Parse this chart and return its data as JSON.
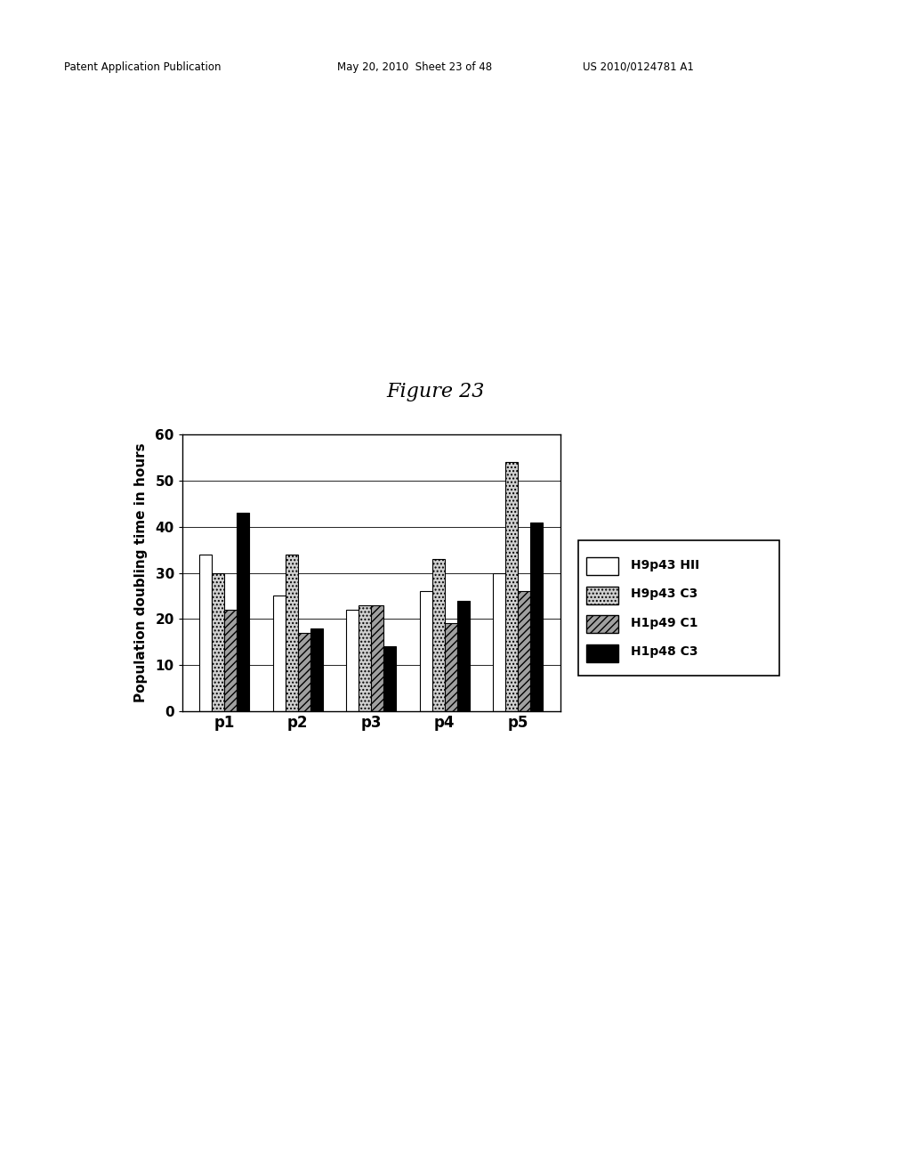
{
  "categories": [
    "p1",
    "p2",
    "p3",
    "p4",
    "p5"
  ],
  "series": [
    {
      "label": "H9p43 HII",
      "values": [
        34,
        25,
        22,
        26,
        30
      ],
      "color": "#ffffff",
      "edgecolor": "#000000",
      "hatch": ""
    },
    {
      "label": "H9p43 C3",
      "values": [
        30,
        34,
        23,
        33,
        54
      ],
      "color": "#d0d0d0",
      "edgecolor": "#000000",
      "hatch": "...."
    },
    {
      "label": "H1p49 C1",
      "values": [
        22,
        17,
        23,
        19,
        26
      ],
      "color": "#a0a0a0",
      "edgecolor": "#000000",
      "hatch": "////"
    },
    {
      "label": "H1p48 C3",
      "values": [
        43,
        18,
        14,
        24,
        41
      ],
      "color": "#000000",
      "edgecolor": "#000000",
      "hatch": ""
    }
  ],
  "ylabel": "Population doubling time in hours",
  "ylim": [
    0,
    60
  ],
  "yticks": [
    0,
    10,
    20,
    30,
    40,
    50,
    60
  ],
  "title": "Figure 23",
  "figsize": [
    10.24,
    13.2
  ],
  "dpi": 100,
  "bar_width": 0.17,
  "background_color": "#ffffff",
  "header_left": "Patent Application Publication",
  "header_mid": "May 20, 2010  Sheet 23 of 48",
  "header_right": "US 2010/0124781 A1"
}
